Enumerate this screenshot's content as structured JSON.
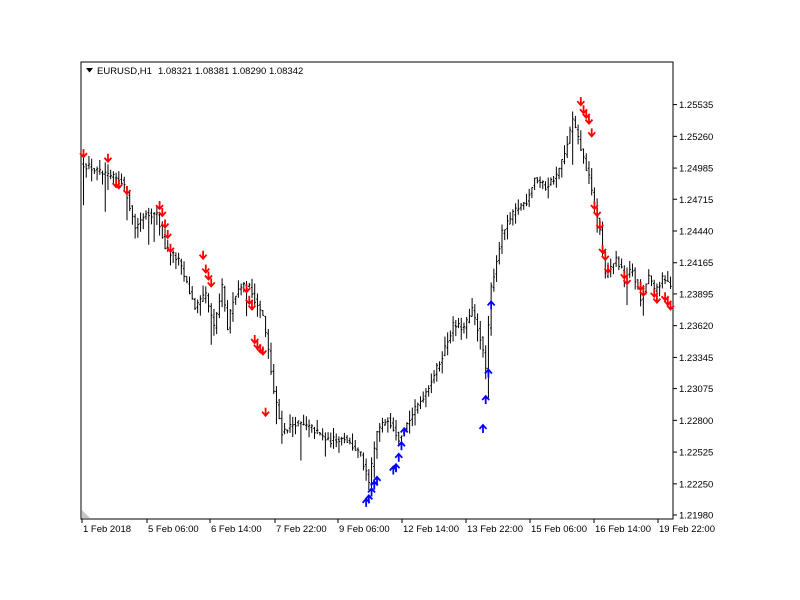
{
  "header": {
    "symbol": "EURUSD,H1",
    "ohlc": "1.08321 1.08381 1.08290 1.08342",
    "menu_icon": "triangle-down-icon"
  },
  "colors": {
    "bars": "#000000",
    "sell_arrow": "#ff0000",
    "buy_arrow": "#0000ff",
    "background": "#ffffff",
    "frame": "#000000"
  },
  "chart_data": {
    "type": "ohlc",
    "ylim": [
      1.2198,
      1.2567
    ],
    "price_ticks": [
      "1.25535",
      "1.25260",
      "1.24985",
      "1.24715",
      "1.24440",
      "1.24165",
      "1.23895",
      "1.23620",
      "1.23345",
      "1.23075",
      "1.22800",
      "1.22525",
      "1.22250",
      "1.21980"
    ],
    "time_labels": [
      "1 Feb 2018",
      "5 Feb 06:00",
      "6 Feb 14:00",
      "7 Feb 22:00",
      "9 Feb 06:00",
      "12 Feb 14:00",
      "13 Feb 22:00",
      "15 Feb 06:00",
      "16 Feb 14:00",
      "19 Feb 22:00"
    ],
    "grid": false,
    "anchors": [
      [
        0,
        1.2502
      ],
      [
        8,
        1.2492
      ],
      [
        14,
        1.2488
      ],
      [
        16,
        1.2475
      ],
      [
        19,
        1.2447
      ],
      [
        23,
        1.246
      ],
      [
        27,
        1.2458
      ],
      [
        30,
        1.243
      ],
      [
        35,
        1.2418
      ],
      [
        41,
        1.2378
      ],
      [
        45,
        1.2388
      ],
      [
        48,
        1.236
      ],
      [
        51,
        1.2395
      ],
      [
        53,
        1.236
      ],
      [
        55,
        1.2385
      ],
      [
        58,
        1.2398
      ],
      [
        61,
        1.2395
      ],
      [
        66,
        1.237
      ],
      [
        68,
        1.234
      ],
      [
        70,
        1.2305
      ],
      [
        73,
        1.227
      ],
      [
        78,
        1.2278
      ],
      [
        84,
        1.2273
      ],
      [
        90,
        1.2262
      ],
      [
        96,
        1.2265
      ],
      [
        102,
        1.225
      ],
      [
        105,
        1.2225
      ],
      [
        108,
        1.227
      ],
      [
        112,
        1.2282
      ],
      [
        116,
        1.2265
      ],
      [
        121,
        1.2285
      ],
      [
        126,
        1.2305
      ],
      [
        131,
        1.233
      ],
      [
        136,
        1.2362
      ],
      [
        140,
        1.236
      ],
      [
        143,
        1.2375
      ],
      [
        146,
        1.2352
      ],
      [
        148,
        1.2325
      ],
      [
        150,
        1.2395
      ],
      [
        154,
        1.2442
      ],
      [
        159,
        1.2462
      ],
      [
        163,
        1.247
      ],
      [
        166,
        1.249
      ],
      [
        170,
        1.2482
      ],
      [
        174,
        1.2492
      ],
      [
        177,
        1.251
      ],
      [
        180,
        1.254
      ],
      [
        183,
        1.2515
      ],
      [
        186,
        1.249
      ],
      [
        188,
        1.2465
      ],
      [
        190,
        1.2445
      ],
      [
        192,
        1.2405
      ],
      [
        196,
        1.242
      ],
      [
        199,
        1.2405
      ],
      [
        202,
        1.241
      ],
      [
        205,
        1.2385
      ],
      [
        208,
        1.2405
      ],
      [
        210,
        1.2392
      ],
      [
        213,
        1.2402
      ],
      [
        216,
        1.2398
      ]
    ],
    "sell_signals": [
      [
        0,
        1.2508
      ],
      [
        9,
        1.2504
      ],
      [
        12,
        1.2482
      ],
      [
        13,
        1.2481
      ],
      [
        16,
        1.2476
      ],
      [
        28,
        1.2463
      ],
      [
        29,
        1.2457
      ],
      [
        30,
        1.2447
      ],
      [
        31,
        1.2438
      ],
      [
        32,
        1.2426
      ],
      [
        44,
        1.242
      ],
      [
        45,
        1.2408
      ],
      [
        46,
        1.2402
      ],
      [
        47,
        1.2396
      ],
      [
        60,
        1.2391
      ],
      [
        61,
        1.2381
      ],
      [
        62,
        1.2376
      ],
      [
        63,
        1.2347
      ],
      [
        64,
        1.2342
      ],
      [
        65,
        1.2339
      ],
      [
        66,
        1.2337
      ],
      [
        67,
        1.2284
      ],
      [
        183,
        1.2553
      ],
      [
        184,
        1.2546
      ],
      [
        185,
        1.2542
      ],
      [
        186,
        1.2537
      ],
      [
        187,
        1.2526
      ],
      [
        188,
        1.2463
      ],
      [
        189,
        1.2457
      ],
      [
        190,
        1.2446
      ],
      [
        191,
        1.2425
      ],
      [
        192,
        1.2419
      ],
      [
        193,
        1.2408
      ],
      [
        199,
        1.2403
      ],
      [
        200,
        1.2398
      ],
      [
        205,
        1.2393
      ],
      [
        206,
        1.2388
      ],
      [
        210,
        1.2387
      ],
      [
        211,
        1.2382
      ],
      [
        214,
        1.2384
      ],
      [
        215,
        1.238
      ],
      [
        216,
        1.2376
      ]
    ],
    "buy_signals": [
      [
        104,
        1.2212
      ],
      [
        105,
        1.2215
      ],
      [
        106,
        1.2221
      ],
      [
        107,
        1.2227
      ],
      [
        108,
        1.2231
      ],
      [
        114,
        1.224
      ],
      [
        115,
        1.2242
      ],
      [
        116,
        1.2251
      ],
      [
        117,
        1.2261
      ],
      [
        118,
        1.2273
      ],
      [
        147,
        1.2276
      ],
      [
        148,
        1.2301
      ],
      [
        149,
        1.2324
      ],
      [
        150,
        1.2383
      ]
    ]
  }
}
